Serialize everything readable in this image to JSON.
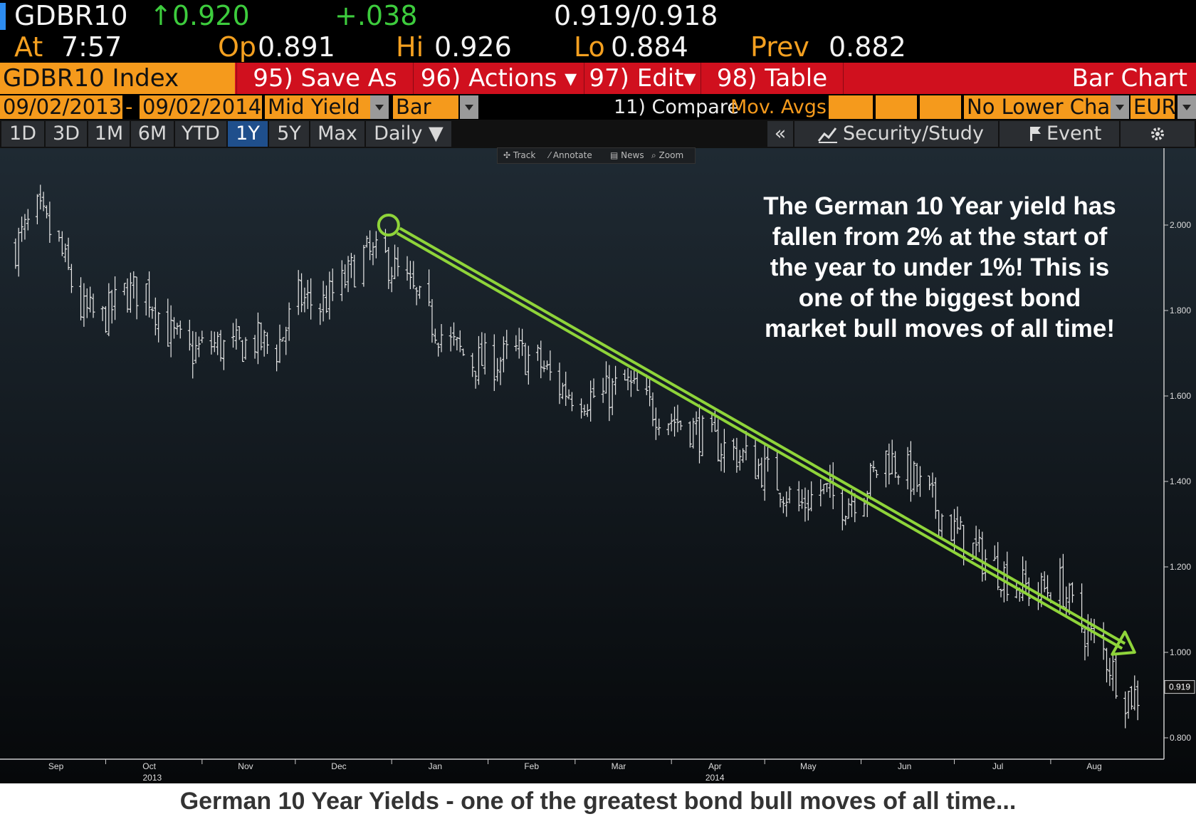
{
  "quote": {
    "ticker": "GDBR10",
    "last": "↑0.920",
    "change": "+.038",
    "bid_ask": "0.919/0.918",
    "at_label": "At",
    "time": "7:57",
    "open_label": "Op",
    "open": "0.891",
    "high_label": "Hi",
    "high": "0.926",
    "low_label": "Lo",
    "low": "0.884",
    "prev_label": "Prev",
    "prev": "0.882"
  },
  "toolbar": {
    "index_label": "GDBR10 Index",
    "save_as": "95) Save As",
    "actions": "96) Actions ▾",
    "edit": "97) Edit▾",
    "table": "98) Table",
    "chart_kind": "Bar Chart"
  },
  "settings": {
    "start_date": "09/02/2013",
    "separator": "-",
    "end_date": "09/02/2014",
    "field": "Mid Yield",
    "chart_style": "Bar",
    "compare": "11) Compare",
    "mov_avgs": "Mov. Avgs",
    "lower_chart": "No Lower Chart",
    "currency": "EUR"
  },
  "periods": {
    "items": [
      "1D",
      "3D",
      "1M",
      "6M",
      "YTD",
      "1Y",
      "5Y",
      "Max"
    ],
    "selected": "1Y",
    "frequency": "Daily ▼",
    "collapse": "«",
    "security_study": "Security/Study",
    "event": "Event"
  },
  "chart_tools": {
    "track": "Track",
    "annotate": "Annotate",
    "news": "News",
    "zoom": "Zoom"
  },
  "colors": {
    "accent_orange": "#f59a1c",
    "toolbar_red": "#d0101e",
    "trend_arrow": "#8fd43a",
    "price_green": "#3dcc3d"
  },
  "annotation": "The German 10 Year yield has fallen from 2% at the start of the year to under 1%!  This is one of the biggest bond market bull moves of all time!",
  "caption": "German 10 Year Yields - one of the greatest bond bull moves of all time...",
  "chart_data": {
    "type": "bar",
    "subtype": "ohlc-price-bars",
    "x_axis": {
      "months": [
        "Sep",
        "Oct",
        "Nov",
        "Dec",
        "Jan",
        "Feb",
        "Mar",
        "Apr",
        "May",
        "Jun",
        "Jul",
        "Aug"
      ],
      "years": [
        "2013",
        "2014"
      ]
    },
    "y_axis": {
      "ticks": [
        "2.000",
        "1.800",
        "1.600",
        "1.400",
        "1.200",
        "1.000",
        "0.800"
      ],
      "range": [
        0.75,
        2.18
      ],
      "position": "right"
    },
    "last_value_label": "0.919",
    "grid": false,
    "weekly_closes": {
      "dates": [
        "2013-09-02",
        "2013-09-09",
        "2013-09-16",
        "2013-09-23",
        "2013-09-30",
        "2013-10-07",
        "2013-10-14",
        "2013-10-21",
        "2013-10-28",
        "2013-11-04",
        "2013-11-11",
        "2013-11-18",
        "2013-11-25",
        "2013-12-02",
        "2013-12-09",
        "2013-12-16",
        "2013-12-23",
        "2013-12-30",
        "2014-01-06",
        "2014-01-13",
        "2014-01-20",
        "2014-01-27",
        "2014-02-03",
        "2014-02-10",
        "2014-02-17",
        "2014-02-24",
        "2014-03-03",
        "2014-03-10",
        "2014-03-17",
        "2014-03-24",
        "2014-03-31",
        "2014-04-07",
        "2014-04-14",
        "2014-04-21",
        "2014-04-28",
        "2014-05-05",
        "2014-05-12",
        "2014-05-19",
        "2014-05-26",
        "2014-06-02",
        "2014-06-09",
        "2014-06-16",
        "2014-06-23",
        "2014-06-30",
        "2014-07-07",
        "2014-07-14",
        "2014-07-21",
        "2014-07-28",
        "2014-08-04",
        "2014-08-11",
        "2014-08-18",
        "2014-08-25"
      ],
      "values": [
        1.95,
        2.03,
        1.95,
        1.8,
        1.78,
        1.84,
        1.85,
        1.75,
        1.7,
        1.72,
        1.71,
        1.73,
        1.71,
        1.83,
        1.81,
        1.86,
        1.93,
        1.92,
        1.86,
        1.78,
        1.72,
        1.68,
        1.68,
        1.7,
        1.68,
        1.62,
        1.6,
        1.6,
        1.63,
        1.58,
        1.55,
        1.53,
        1.49,
        1.47,
        1.44,
        1.4,
        1.34,
        1.38,
        1.35,
        1.38,
        1.46,
        1.42,
        1.36,
        1.29,
        1.24,
        1.2,
        1.16,
        1.14,
        1.16,
        1.06,
        1.0,
        0.9
      ]
    },
    "trend_arrow": {
      "from": {
        "x": "2013-12-31",
        "y": 2.0
      },
      "to": {
        "x": "2014-08-28",
        "y": 1.0
      }
    }
  }
}
